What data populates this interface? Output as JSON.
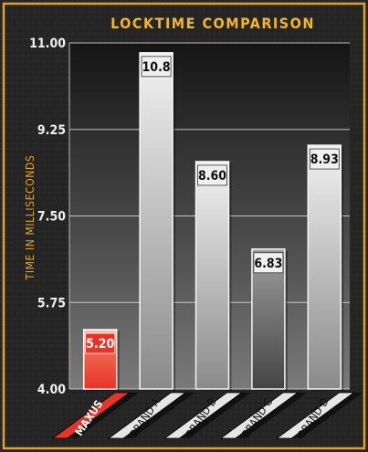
{
  "chart_data": {
    "type": "bar",
    "title": "LOCKTIME COMPARISON",
    "ylabel": "TIME IN MILLISECONDS",
    "xlabel": "",
    "ylim": [
      4.0,
      11.0
    ],
    "yticks": [
      "4.00",
      "5.75",
      "7.50",
      "9.25",
      "11.00"
    ],
    "categories": [
      "MAXUS",
      "BRAND A",
      "BRAND B",
      "BRAND C",
      "BRAND D"
    ],
    "values": [
      5.2,
      10.8,
      8.6,
      6.83,
      8.93
    ],
    "value_labels": [
      "5.20",
      "10.8",
      "8.60",
      "6.83",
      "8.93"
    ],
    "grid": true,
    "colors": {
      "frame_gold": "#e0a32a",
      "title_text": "#f2b52c",
      "highlight_bar": "#e8332a",
      "highlight_label_bg": "#e8332a",
      "label_bg": "#e6e6e6",
      "ylabel_text": "#e0a32a"
    }
  }
}
